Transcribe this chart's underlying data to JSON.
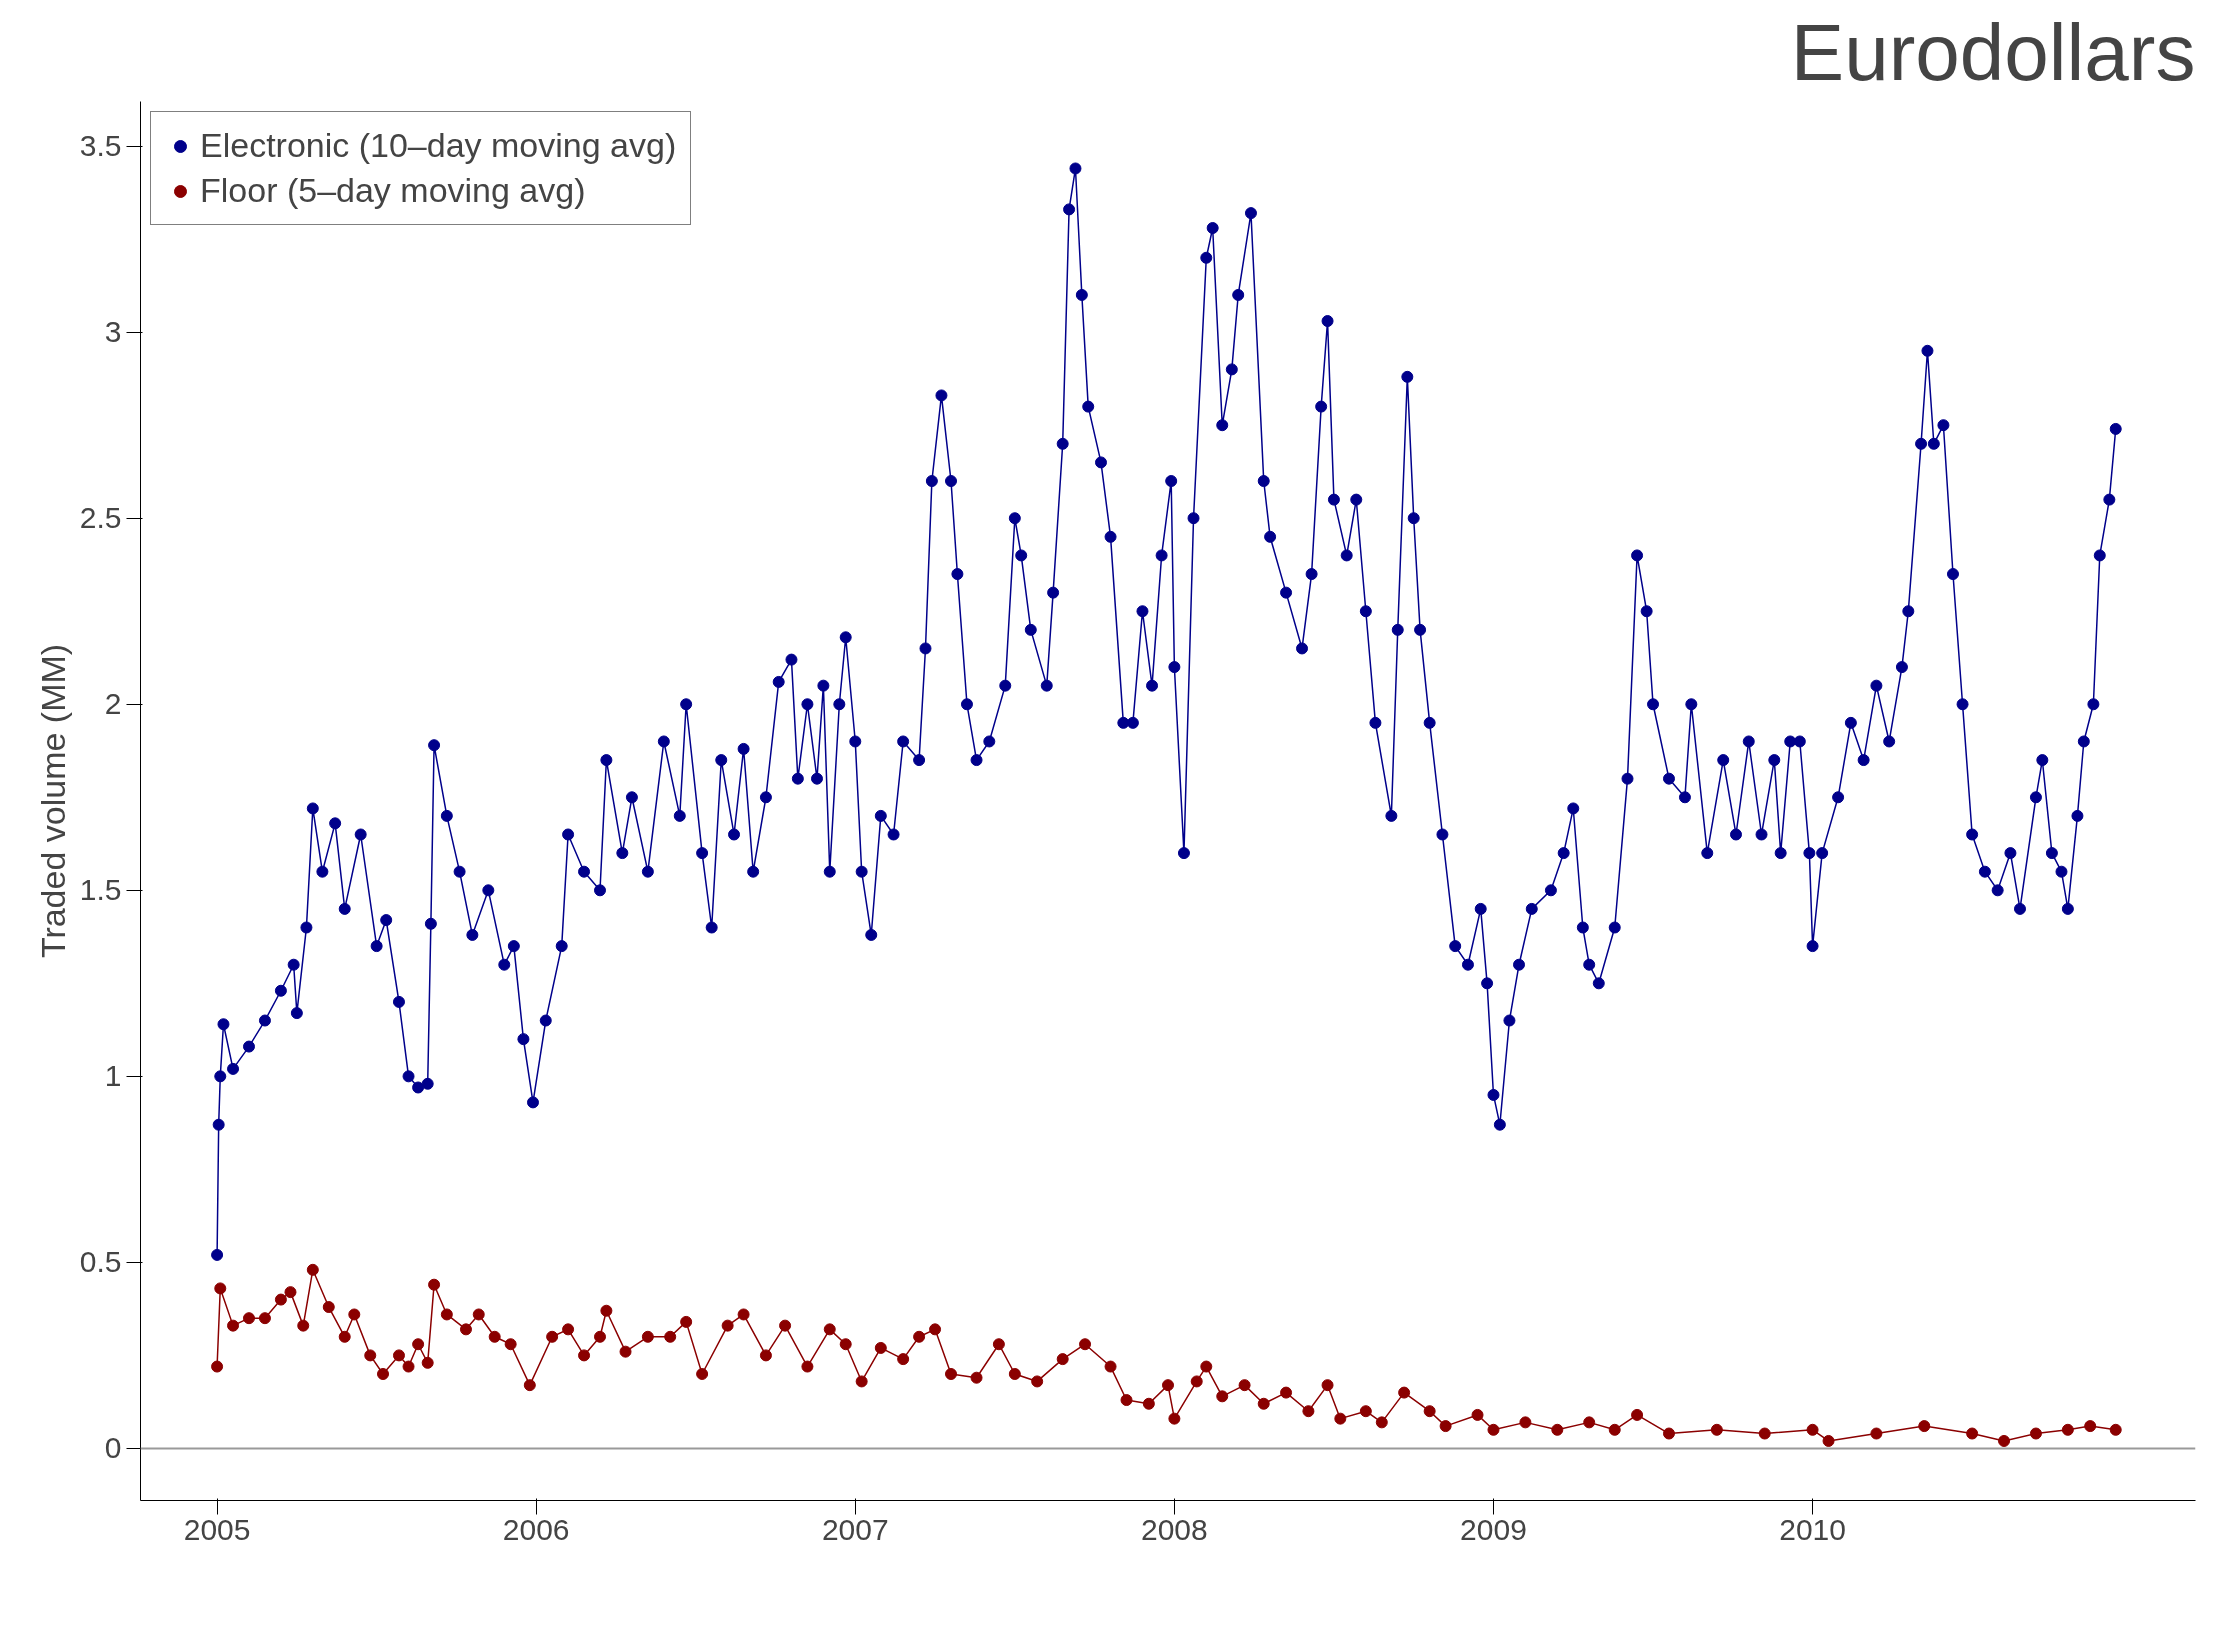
{
  "chart_data": {
    "type": "line",
    "title": "Eurodollars",
    "ylabel": "Traded volume (MM)",
    "xlim": [
      2004.76,
      2011.2
    ],
    "ylim": [
      -0.14,
      3.62
    ],
    "xticks": [
      2005,
      2006,
      2007,
      2008,
      2009,
      2010
    ],
    "yticks": [
      0,
      0.5,
      1,
      1.5,
      2,
      2.5,
      3,
      3.5
    ],
    "grid": false,
    "legend": "top left",
    "marker": "circle",
    "line_style": "solid",
    "ref_lines": [
      {
        "axis": "y",
        "value": 0,
        "color": "#999999"
      }
    ],
    "series": [
      {
        "name": "Electronic (10–day moving avg)",
        "color": "#00008b",
        "x": [
          2005.0,
          2005.005,
          2005.01,
          2005.02,
          2005.05,
          2005.1,
          2005.15,
          2005.2,
          2005.24,
          2005.25,
          2005.28,
          2005.3,
          2005.33,
          2005.37,
          2005.4,
          2005.45,
          2005.5,
          2005.53,
          2005.57,
          2005.6,
          2005.63,
          2005.66,
          2005.67,
          2005.68,
          2005.72,
          2005.76,
          2005.8,
          2005.85,
          2005.9,
          2005.93,
          2005.96,
          2005.99,
          2006.03,
          2006.08,
          2006.1,
          2006.15,
          2006.2,
          2006.22,
          2006.27,
          2006.3,
          2006.35,
          2006.4,
          2006.45,
          2006.47,
          2006.52,
          2006.55,
          2006.58,
          2006.62,
          2006.65,
          2006.68,
          2006.72,
          2006.76,
          2006.8,
          2006.82,
          2006.85,
          2006.88,
          2006.9,
          2006.92,
          2006.95,
          2006.97,
          2007.0,
          2007.02,
          2007.05,
          2007.08,
          2007.12,
          2007.15,
          2007.2,
          2007.22,
          2007.24,
          2007.27,
          2007.3,
          2007.32,
          2007.35,
          2007.38,
          2007.42,
          2007.47,
          2007.5,
          2007.52,
          2007.55,
          2007.6,
          2007.62,
          2007.65,
          2007.67,
          2007.69,
          2007.71,
          2007.73,
          2007.77,
          2007.8,
          2007.84,
          2007.87,
          2007.9,
          2007.93,
          2007.96,
          2007.99,
          2008.0,
          2008.03,
          2008.06,
          2008.1,
          2008.12,
          2008.15,
          2008.18,
          2008.2,
          2008.24,
          2008.28,
          2008.3,
          2008.35,
          2008.4,
          2008.43,
          2008.46,
          2008.48,
          2008.5,
          2008.54,
          2008.57,
          2008.6,
          2008.63,
          2008.68,
          2008.7,
          2008.73,
          2008.75,
          2008.77,
          2008.8,
          2008.84,
          2008.88,
          2008.92,
          2008.96,
          2008.98,
          2009.0,
          2009.02,
          2009.05,
          2009.08,
          2009.12,
          2009.18,
          2009.22,
          2009.25,
          2009.28,
          2009.3,
          2009.33,
          2009.38,
          2009.42,
          2009.45,
          2009.48,
          2009.5,
          2009.55,
          2009.6,
          2009.62,
          2009.67,
          2009.72,
          2009.76,
          2009.8,
          2009.84,
          2009.88,
          2009.9,
          2009.93,
          2009.96,
          2009.99,
          2010.0,
          2010.03,
          2010.08,
          2010.12,
          2010.16,
          2010.2,
          2010.24,
          2010.28,
          2010.3,
          2010.34,
          2010.36,
          2010.38,
          2010.41,
          2010.44,
          2010.47,
          2010.5,
          2010.54,
          2010.58,
          2010.62,
          2010.65,
          2010.7,
          2010.72,
          2010.75,
          2010.78,
          2010.8,
          2010.83,
          2010.85,
          2010.88,
          2010.9,
          2010.93,
          2010.95
        ],
        "values": [
          0.52,
          0.87,
          1.0,
          1.14,
          1.02,
          1.08,
          1.15,
          1.23,
          1.3,
          1.17,
          1.4,
          1.72,
          1.55,
          1.68,
          1.45,
          1.65,
          1.35,
          1.42,
          1.2,
          1.0,
          0.97,
          0.98,
          1.41,
          1.89,
          1.7,
          1.55,
          1.38,
          1.5,
          1.3,
          1.35,
          1.1,
          0.93,
          1.15,
          1.35,
          1.65,
          1.55,
          1.5,
          1.85,
          1.6,
          1.75,
          1.55,
          1.9,
          1.7,
          2.0,
          1.6,
          1.4,
          1.85,
          1.65,
          1.88,
          1.55,
          1.75,
          2.06,
          2.12,
          1.8,
          2.0,
          1.8,
          2.05,
          1.55,
          2.0,
          2.18,
          1.9,
          1.55,
          1.38,
          1.7,
          1.65,
          1.9,
          1.85,
          2.15,
          2.6,
          2.83,
          2.6,
          2.35,
          2.0,
          1.85,
          1.9,
          2.05,
          2.5,
          2.4,
          2.2,
          2.05,
          2.3,
          2.7,
          3.33,
          3.44,
          3.1,
          2.8,
          2.65,
          2.45,
          1.95,
          1.95,
          2.25,
          2.05,
          2.4,
          2.6,
          2.1,
          1.6,
          2.5,
          3.2,
          3.28,
          2.75,
          2.9,
          3.1,
          3.32,
          2.6,
          2.45,
          2.3,
          2.15,
          2.35,
          2.8,
          3.03,
          2.55,
          2.4,
          2.55,
          2.25,
          1.95,
          1.7,
          2.2,
          2.88,
          2.5,
          2.2,
          1.95,
          1.65,
          1.35,
          1.3,
          1.45,
          1.25,
          0.95,
          0.87,
          1.15,
          1.3,
          1.45,
          1.5,
          1.6,
          1.72,
          1.4,
          1.3,
          1.25,
          1.4,
          1.8,
          2.4,
          2.25,
          2.0,
          1.8,
          1.75,
          2.0,
          1.6,
          1.85,
          1.65,
          1.9,
          1.65,
          1.85,
          1.6,
          1.9,
          1.9,
          1.6,
          1.35,
          1.6,
          1.75,
          1.95,
          1.85,
          2.05,
          1.9,
          2.1,
          2.25,
          2.7,
          2.95,
          2.7,
          2.75,
          2.35,
          2.0,
          1.65,
          1.55,
          1.5,
          1.6,
          1.45,
          1.75,
          1.85,
          1.6,
          1.55,
          1.45,
          1.7,
          1.9,
          2.0,
          2.4,
          2.55,
          2.74
        ]
      },
      {
        "name": "Floor (5–day moving avg)",
        "color": "#8b0000",
        "x": [
          2005.0,
          2005.01,
          2005.05,
          2005.1,
          2005.15,
          2005.2,
          2005.23,
          2005.27,
          2005.3,
          2005.35,
          2005.4,
          2005.43,
          2005.48,
          2005.52,
          2005.57,
          2005.6,
          2005.63,
          2005.66,
          2005.68,
          2005.72,
          2005.78,
          2005.82,
          2005.87,
          2005.92,
          2005.98,
          2006.05,
          2006.1,
          2006.15,
          2006.2,
          2006.22,
          2006.28,
          2006.35,
          2006.42,
          2006.47,
          2006.52,
          2006.6,
          2006.65,
          2006.72,
          2006.78,
          2006.85,
          2006.92,
          2006.97,
          2007.02,
          2007.08,
          2007.15,
          2007.2,
          2007.25,
          2007.3,
          2007.38,
          2007.45,
          2007.5,
          2007.57,
          2007.65,
          2007.72,
          2007.8,
          2007.85,
          2007.92,
          2007.98,
          2008.0,
          2008.07,
          2008.1,
          2008.15,
          2008.22,
          2008.28,
          2008.35,
          2008.42,
          2008.48,
          2008.52,
          2008.6,
          2008.65,
          2008.72,
          2008.8,
          2008.85,
          2008.95,
          2009.0,
          2009.1,
          2009.2,
          2009.3,
          2009.38,
          2009.45,
          2009.55,
          2009.7,
          2009.85,
          2010.0,
          2010.05,
          2010.2,
          2010.35,
          2010.5,
          2010.6,
          2010.7,
          2010.8,
          2010.87,
          2010.95
        ],
        "values": [
          0.22,
          0.43,
          0.33,
          0.35,
          0.35,
          0.4,
          0.42,
          0.33,
          0.48,
          0.38,
          0.3,
          0.36,
          0.25,
          0.2,
          0.25,
          0.22,
          0.28,
          0.23,
          0.44,
          0.36,
          0.32,
          0.36,
          0.3,
          0.28,
          0.17,
          0.3,
          0.32,
          0.25,
          0.3,
          0.37,
          0.26,
          0.3,
          0.3,
          0.34,
          0.2,
          0.33,
          0.36,
          0.25,
          0.33,
          0.22,
          0.32,
          0.28,
          0.18,
          0.27,
          0.24,
          0.3,
          0.32,
          0.2,
          0.19,
          0.28,
          0.2,
          0.18,
          0.24,
          0.28,
          0.22,
          0.13,
          0.12,
          0.17,
          0.08,
          0.18,
          0.22,
          0.14,
          0.17,
          0.12,
          0.15,
          0.1,
          0.17,
          0.08,
          0.1,
          0.07,
          0.15,
          0.1,
          0.06,
          0.09,
          0.05,
          0.07,
          0.05,
          0.07,
          0.05,
          0.09,
          0.04,
          0.05,
          0.04,
          0.05,
          0.02,
          0.04,
          0.06,
          0.04,
          0.02,
          0.04,
          0.05,
          0.06,
          0.05
        ]
      }
    ]
  }
}
